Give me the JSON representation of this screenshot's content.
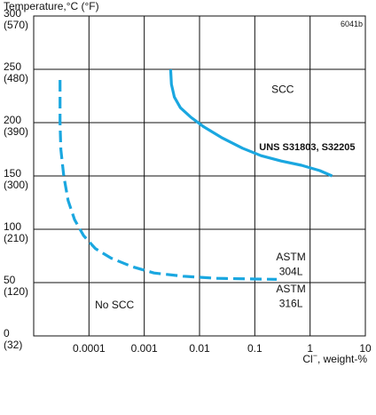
{
  "chart_data": {
    "type": "line",
    "code_label": "6041b",
    "ylabel": "Temperature,°C (°F)",
    "xlabel_main": "Cl",
    "xlabel_sup": "−",
    "xlabel_rest": ", weight-%",
    "x_scale": "log",
    "xlim": [
      1e-05,
      10
    ],
    "ylim": [
      0,
      300
    ],
    "grid": true,
    "x_ticks": [
      {
        "value": 0.0001,
        "label": "0.0001"
      },
      {
        "value": 0.001,
        "label": "0.001"
      },
      {
        "value": 0.01,
        "label": "0.01"
      },
      {
        "value": 0.1,
        "label": "0.1"
      },
      {
        "value": 1,
        "label": "1"
      },
      {
        "value": 10,
        "label": "10"
      }
    ],
    "y_ticks": [
      {
        "value": 300,
        "c": "300",
        "f": "(570)"
      },
      {
        "value": 250,
        "c": "250",
        "f": "(480)"
      },
      {
        "value": 200,
        "c": "200",
        "f": "(390)"
      },
      {
        "value": 150,
        "c": "150",
        "f": "(300)"
      },
      {
        "value": 100,
        "c": "100",
        "f": "(210)"
      },
      {
        "value": 50,
        "c": "50",
        "f": "(120)"
      },
      {
        "value": 0,
        "c": "0",
        "f": "(32)"
      }
    ],
    "series": [
      {
        "name": "UNS S31803, S32205",
        "style": "solid",
        "color": "#1aa7e0",
        "points": [
          {
            "x": 0.003,
            "y": 250
          },
          {
            "x": 0.0031,
            "y": 236
          },
          {
            "x": 0.0035,
            "y": 224
          },
          {
            "x": 0.0045,
            "y": 214
          },
          {
            "x": 0.007,
            "y": 205
          },
          {
            "x": 0.012,
            "y": 196
          },
          {
            "x": 0.025,
            "y": 186
          },
          {
            "x": 0.06,
            "y": 176
          },
          {
            "x": 0.13,
            "y": 169
          },
          {
            "x": 0.3,
            "y": 164
          },
          {
            "x": 0.7,
            "y": 160
          },
          {
            "x": 1.5,
            "y": 155
          },
          {
            "x": 2.5,
            "y": 150
          }
        ]
      },
      {
        "name": "ASTM 304L",
        "style": "dashed",
        "color": "#1aa7e0",
        "points": [
          {
            "x": 3e-05,
            "y": 240
          },
          {
            "x": 3e-05,
            "y": 200
          },
          {
            "x": 3.1e-05,
            "y": 175
          },
          {
            "x": 3.5e-05,
            "y": 150
          },
          {
            "x": 4.2e-05,
            "y": 127
          },
          {
            "x": 5.5e-05,
            "y": 109
          },
          {
            "x": 8e-05,
            "y": 94
          },
          {
            "x": 0.00013,
            "y": 82
          },
          {
            "x": 0.00025,
            "y": 73
          },
          {
            "x": 0.0006,
            "y": 65
          },
          {
            "x": 0.0015,
            "y": 59
          },
          {
            "x": 0.005,
            "y": 56
          },
          {
            "x": 0.02,
            "y": 54
          },
          {
            "x": 0.07,
            "y": 53.5
          },
          {
            "x": 0.25,
            "y": 53
          }
        ]
      }
    ],
    "annotations": [
      {
        "text": "SCC",
        "x": 0.2,
        "y": 228,
        "weight": "normal",
        "anchor": "start"
      },
      {
        "text": "UNS S31803, S32205",
        "x": 0.12,
        "y": 174,
        "weight": "bold",
        "anchor": "start"
      },
      {
        "text": "ASTM",
        "x": 0.45,
        "y": 71,
        "weight": "normal",
        "anchor": "middle"
      },
      {
        "text": "304L",
        "x": 0.45,
        "y": 57,
        "weight": "normal",
        "anchor": "middle"
      },
      {
        "text": "ASTM",
        "x": 0.45,
        "y": 41,
        "weight": "normal",
        "anchor": "middle"
      },
      {
        "text": "316L",
        "x": 0.45,
        "y": 27,
        "weight": "normal",
        "anchor": "middle"
      },
      {
        "text": "No SCC",
        "x": 0.00029,
        "y": 26,
        "weight": "normal",
        "anchor": "middle"
      }
    ]
  }
}
